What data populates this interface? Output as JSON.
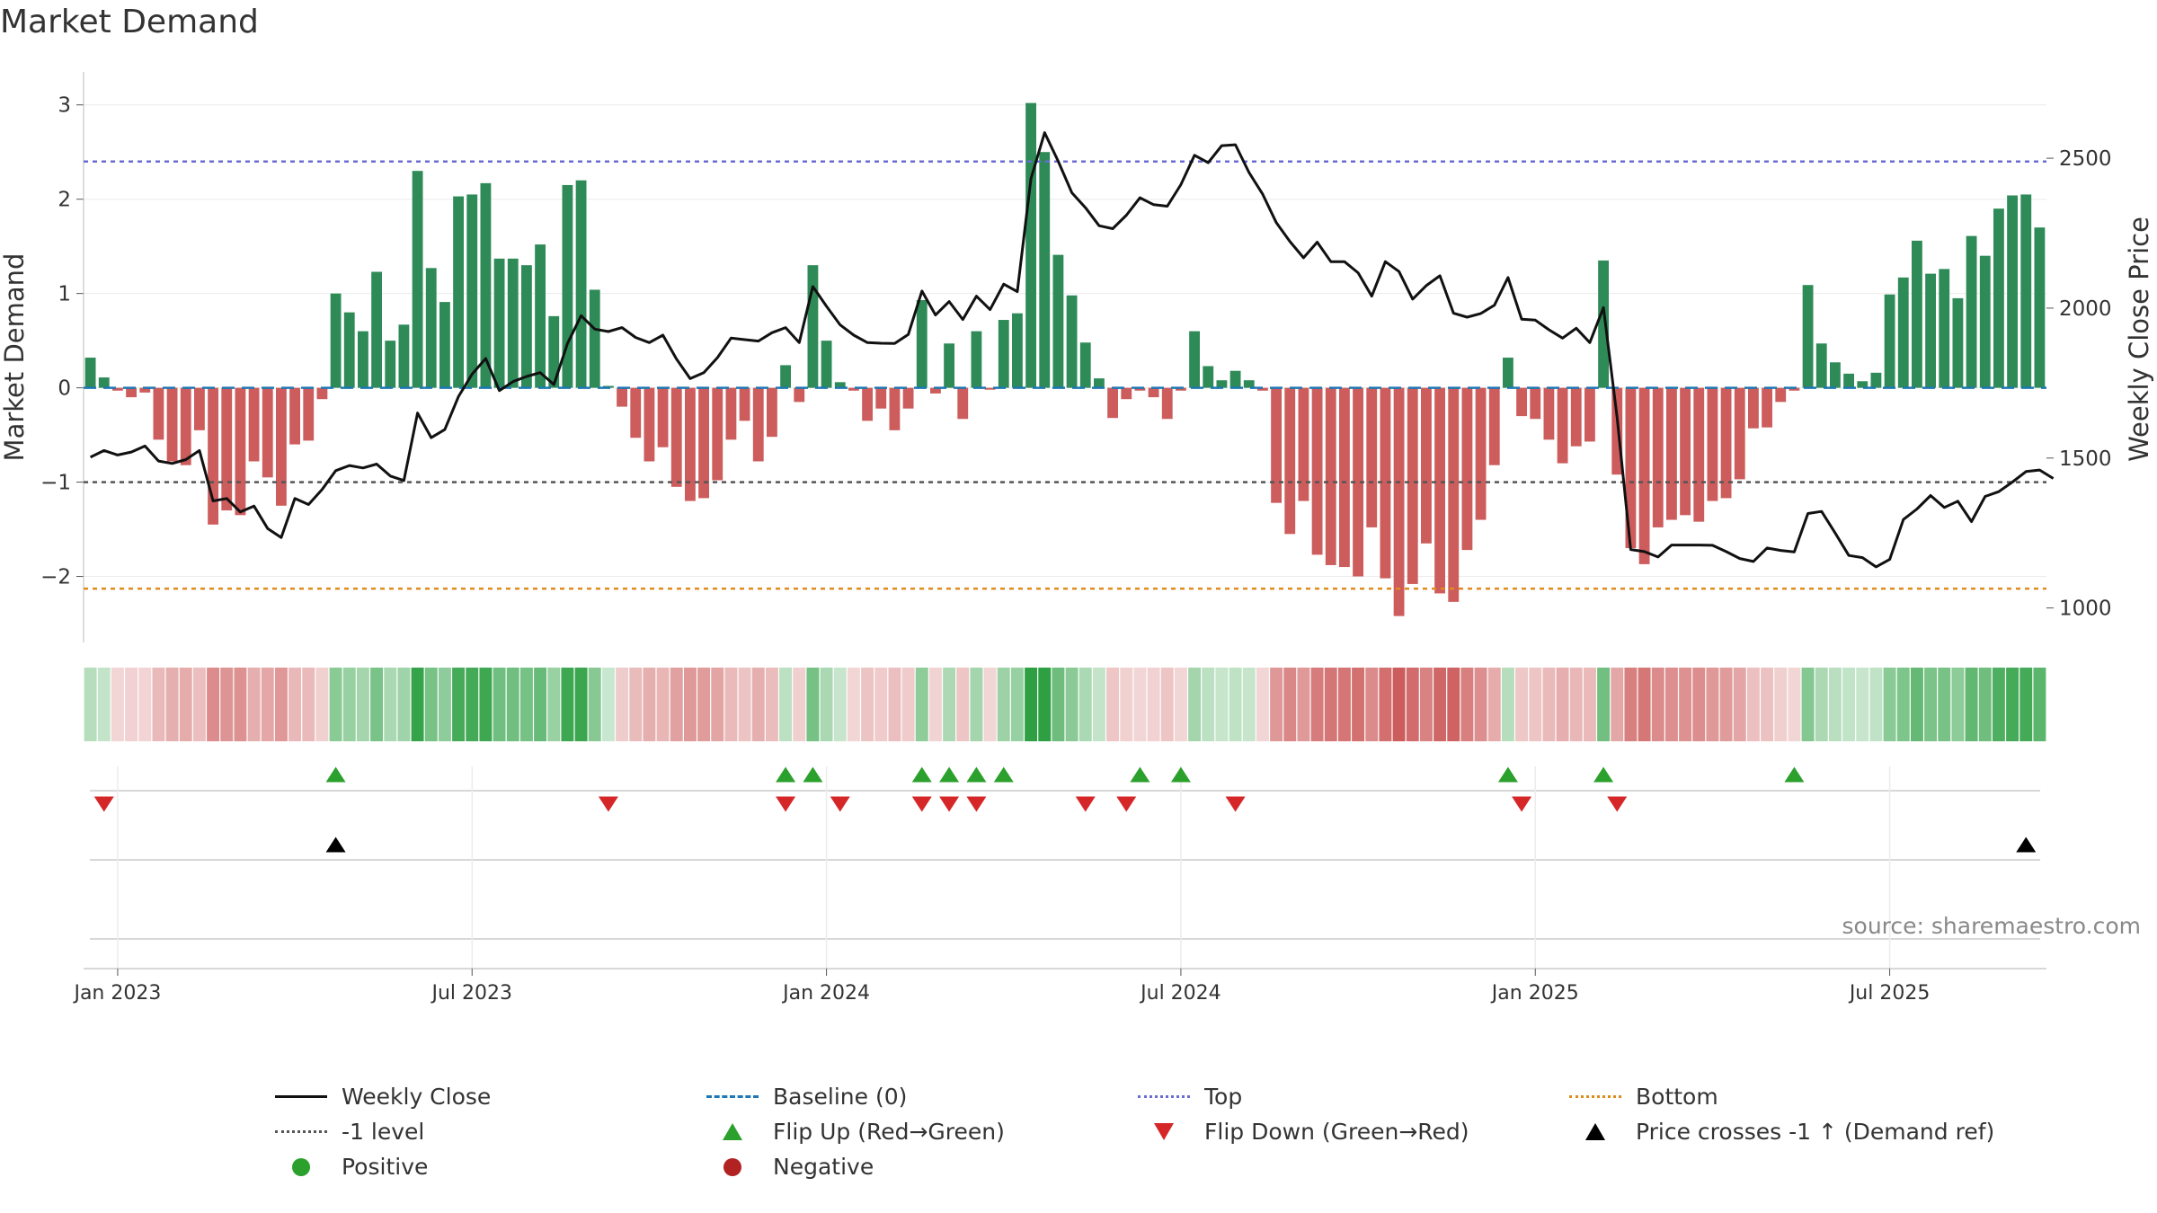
{
  "title": "Market Demand",
  "source": "source: sharemaestro.com",
  "colors": {
    "positive_bar": "#2e8b57",
    "negative_bar": "#cd5c5c",
    "price_line": "#111111",
    "baseline": "#1f77b4",
    "top_line": "#6b6bd6",
    "bottom_line": "#e08a1e",
    "minus1_line": "#555555",
    "flip_up": "#2ca02c",
    "flip_down": "#d62728",
    "cross": "#000000"
  },
  "chart_data": {
    "type": "bar",
    "title": "Market Demand",
    "ylabel": "Market Demand",
    "y2label": "Weekly Close Price",
    "ylim": [
      -2.7,
      3.35
    ],
    "y2lim": [
      885,
      2788
    ],
    "yticks": [
      3,
      2,
      1,
      0,
      -1,
      -2
    ],
    "ytick_labels": [
      "3",
      "2",
      "1",
      "0",
      "−1",
      "−2"
    ],
    "y2ticks": [
      2500,
      2000,
      1500,
      1000
    ],
    "y2tick_labels": [
      "2500",
      "2000",
      "1500",
      "1000"
    ],
    "xtick_labels": [
      "Jan 2023",
      "Jul 2023",
      "Jan 2024",
      "Jul 2024",
      "Jan 2025",
      "Jul 2025"
    ],
    "xtick_weeks": [
      2,
      28,
      54,
      80,
      106,
      132
    ],
    "reference_levels": {
      "top": 2.4,
      "bottom": -2.13,
      "minus1": -1,
      "baseline": 0
    },
    "demand": [
      0.32,
      0.11,
      -0.03,
      -0.1,
      -0.05,
      -0.55,
      -0.78,
      -0.82,
      -0.45,
      -1.45,
      -1.3,
      -1.35,
      -0.78,
      -0.95,
      -1.25,
      -0.6,
      -0.56,
      -0.12,
      1.0,
      0.8,
      0.6,
      1.23,
      0.5,
      0.67,
      2.3,
      1.27,
      0.91,
      2.03,
      2.05,
      2.17,
      1.37,
      1.37,
      1.3,
      1.52,
      0.76,
      2.15,
      2.2,
      1.04,
      0.02,
      -0.2,
      -0.53,
      -0.78,
      -0.63,
      -1.05,
      -1.2,
      -1.17,
      -0.98,
      -0.55,
      -0.35,
      -0.78,
      -0.52,
      0.24,
      -0.15,
      1.3,
      0.5,
      0.06,
      -0.03,
      -0.35,
      -0.22,
      -0.45,
      -0.22,
      0.93,
      -0.06,
      0.47,
      -0.33,
      0.6,
      -0.02,
      0.72,
      0.79,
      3.02,
      2.5,
      1.41,
      0.98,
      0.48,
      0.1,
      -0.32,
      -0.12,
      -0.03,
      -0.1,
      -0.33,
      -0.03,
      0.6,
      0.23,
      0.08,
      0.18,
      0.08,
      -0.03,
      -1.22,
      -1.55,
      -1.2,
      -1.77,
      -1.88,
      -1.9,
      -2.0,
      -1.48,
      -2.02,
      -2.42,
      -2.08,
      -1.65,
      -2.18,
      -2.27,
      -1.72,
      -1.4,
      -0.82,
      0.32,
      -0.3,
      -0.33,
      -0.55,
      -0.8,
      -0.62,
      -0.57,
      1.35,
      -0.92,
      -1.7,
      -1.87,
      -1.48,
      -1.4,
      -1.35,
      -1.42,
      -1.2,
      -1.17,
      -0.97,
      -0.43,
      -0.42,
      -0.15,
      -0.03,
      1.09,
      0.47,
      0.27,
      0.15,
      0.07,
      0.16,
      0.99,
      1.17,
      1.56,
      1.21,
      1.26,
      0.95,
      1.61,
      1.4,
      1.9,
      2.04,
      2.05,
      1.7
    ],
    "price": [
      1503,
      1525,
      1510,
      1520,
      1540,
      1490,
      1482,
      1495,
      1525,
      1357,
      1365,
      1320,
      1340,
      1265,
      1235,
      1365,
      1345,
      1395,
      1458,
      1475,
      1467,
      1480,
      1440,
      1425,
      1650,
      1568,
      1595,
      1705,
      1780,
      1832,
      1725,
      1755,
      1772,
      1785,
      1745,
      1882,
      1975,
      1930,
      1922,
      1935,
      1902,
      1885,
      1910,
      1830,
      1765,
      1785,
      1835,
      1900,
      1895,
      1890,
      1918,
      1935,
      1885,
      2072,
      2006,
      1944,
      1910,
      1885,
      1883,
      1882,
      1912,
      2057,
      1977,
      2022,
      1962,
      2040,
      1995,
      2080,
      2055,
      2432,
      2585,
      2490,
      2385,
      2335,
      2275,
      2265,
      2310,
      2368,
      2345,
      2340,
      2412,
      2510,
      2485,
      2542,
      2545,
      2452,
      2380,
      2285,
      2222,
      2168,
      2220,
      2155,
      2155,
      2118,
      2040,
      2155,
      2122,
      2030,
      2075,
      2108,
      1983,
      1970,
      1982,
      2010,
      2102,
      1963,
      1960,
      1928,
      1900,
      1933,
      1885,
      2002,
      1635,
      1195,
      1188,
      1170,
      1210,
      1210,
      1210,
      1209,
      1188,
      1165,
      1155,
      1200,
      1192,
      1187,
      1315,
      1322,
      1250,
      1175,
      1168,
      1137,
      1162,
      1295,
      1330,
      1375,
      1335,
      1356,
      1288,
      1372,
      1388,
      1420,
      1455,
      1460,
      1432
    ],
    "flip_up_weeks": [
      18,
      51,
      53,
      61,
      63,
      65,
      67,
      77,
      80,
      104,
      111,
      125
    ],
    "flip_down_weeks": [
      1,
      38,
      51,
      55,
      61,
      63,
      65,
      73,
      76,
      84,
      105,
      112
    ],
    "price_cross_weeks": [
      18,
      142
    ],
    "legend": [
      {
        "label": "Weekly Close",
        "symbol": "line"
      },
      {
        "label": "Baseline (0)",
        "symbol": "dash"
      },
      {
        "label": "Top",
        "symbol": "dot-blue"
      },
      {
        "label": "Bottom",
        "symbol": "dot-orange"
      },
      {
        "label": "-1 level",
        "symbol": "dot-grey"
      },
      {
        "label": "Flip Up (Red→Green)",
        "symbol": "tri-up"
      },
      {
        "label": "Flip Down (Green→Red)",
        "symbol": "tri-down"
      },
      {
        "label": "Price crosses -1 ↑ (Demand ref)",
        "symbol": "tri-black"
      },
      {
        "label": "Positive",
        "symbol": "circ-g"
      },
      {
        "label": "Negative",
        "symbol": "circ-r"
      }
    ]
  }
}
